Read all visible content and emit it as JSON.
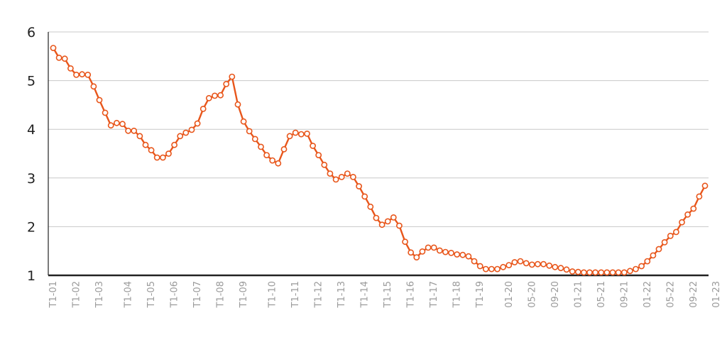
{
  "chart_data": {
    "type": "line",
    "title": "",
    "xlabel": "",
    "ylabel": "",
    "ylim": [
      1,
      6
    ],
    "yticks": [
      1,
      2,
      3,
      4,
      5,
      6
    ],
    "grid": "horizontal",
    "legend": "none",
    "colors": {
      "series": "#e8561b",
      "grid": "#c8c8c8",
      "axis": "#222222",
      "ytick": "#222222",
      "xtick": "#9a9a9a"
    },
    "x_tick_labels": [
      "T1-01",
      "T1-02",
      "T1-03",
      "T1-04",
      "T1-05",
      "T1-06",
      "T1-07",
      "T1-08",
      "T1-09",
      "T1-10",
      "T1-11",
      "T1-12",
      "T1-13",
      "T1-14",
      "T1-15",
      "T1-16",
      "T1-17",
      "T1-18",
      "T1-19",
      "01-20",
      "05-20",
      "09-20",
      "01-21",
      "05-21",
      "09-21",
      "01-22",
      "05-22",
      "09-22",
      "01-23"
    ],
    "x_tick_index": [
      0,
      4,
      8,
      13,
      17,
      21,
      25,
      29,
      33,
      38,
      42,
      46,
      50,
      54,
      58,
      62,
      66,
      70,
      74,
      79,
      83,
      87,
      91,
      95,
      99,
      103,
      107,
      111,
      115
    ],
    "series": [
      {
        "values": [
          5.67,
          5.47,
          5.45,
          5.25,
          5.12,
          5.13,
          5.12,
          4.88,
          4.6,
          4.34,
          4.08,
          4.13,
          4.11,
          3.97,
          3.97,
          3.86,
          3.68,
          3.57,
          3.42,
          3.42,
          3.5,
          3.68,
          3.86,
          3.93,
          3.99,
          4.12,
          4.42,
          4.64,
          4.69,
          4.7,
          4.93,
          5.08,
          4.51,
          4.16,
          3.96,
          3.8,
          3.64,
          3.47,
          3.36,
          3.3,
          3.59,
          3.86,
          3.93,
          3.9,
          3.91,
          3.66,
          3.47,
          3.27,
          3.09,
          2.97,
          3.02,
          3.09,
          3.02,
          2.83,
          2.62,
          2.41,
          2.18,
          2.04,
          2.11,
          2.19,
          2.02,
          1.69,
          1.47,
          1.37,
          1.49,
          1.57,
          1.57,
          1.51,
          1.48,
          1.46,
          1.43,
          1.42,
          1.39,
          1.29,
          1.19,
          1.13,
          1.13,
          1.13,
          1.17,
          1.21,
          1.27,
          1.29,
          1.25,
          1.22,
          1.23,
          1.23,
          1.2,
          1.17,
          1.15,
          1.12,
          1.08,
          1.07,
          1.06,
          1.06,
          1.06,
          1.06,
          1.06,
          1.06,
          1.06,
          1.06,
          1.09,
          1.13,
          1.19,
          1.29,
          1.41,
          1.54,
          1.68,
          1.81,
          1.89,
          2.09,
          2.25,
          2.37,
          2.62,
          2.84
        ]
      }
    ]
  }
}
